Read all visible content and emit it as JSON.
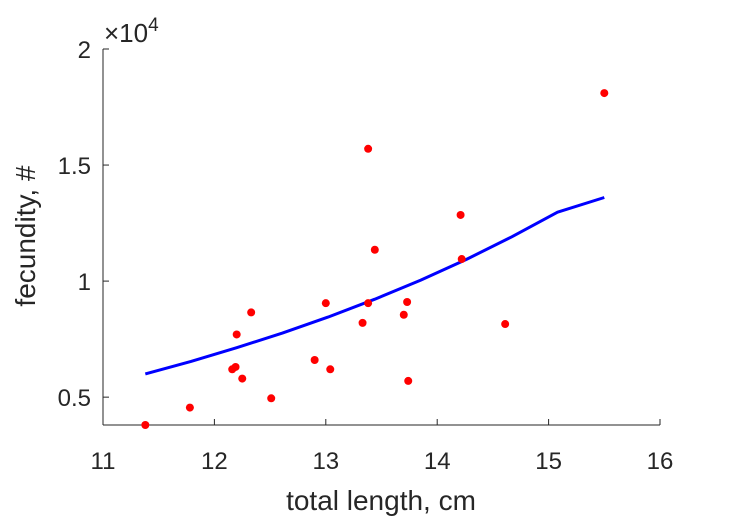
{
  "chart_data": {
    "type": "scatter",
    "xlabel": "total length, cm",
    "ylabel": "fecundity, #",
    "xlim": [
      11,
      16
    ],
    "ylim": [
      3800,
      20000
    ],
    "x_ticks": [
      11,
      12,
      13,
      14,
      15,
      16
    ],
    "y_ticks": [
      5000,
      10000,
      15000,
      20000
    ],
    "x_tick_labels": [
      "11",
      "12",
      "13",
      "14",
      "15",
      "16"
    ],
    "y_tick_labels": [
      "0.5",
      "1",
      "1.5",
      "2"
    ],
    "y_exponent_label": {
      "base": "×10",
      "exp": "4"
    },
    "grid": false,
    "series": [
      {
        "kind": "scatter",
        "color": "#ff0000",
        "points": [
          [
            11.38,
            3800
          ],
          [
            11.78,
            4550
          ],
          [
            12.16,
            6200
          ],
          [
            12.19,
            6300
          ],
          [
            12.2,
            7700
          ],
          [
            12.25,
            5800
          ],
          [
            12.33,
            8650
          ],
          [
            12.51,
            4950
          ],
          [
            12.9,
            6600
          ],
          [
            13.0,
            9050
          ],
          [
            13.04,
            6200
          ],
          [
            13.33,
            8200
          ],
          [
            13.38,
            9050
          ],
          [
            13.38,
            15700
          ],
          [
            13.44,
            11350
          ],
          [
            13.7,
            8550
          ],
          [
            13.73,
            9100
          ],
          [
            13.74,
            5700
          ],
          [
            14.21,
            12850
          ],
          [
            14.22,
            10950
          ],
          [
            14.61,
            8150
          ],
          [
            15.5,
            18100
          ]
        ]
      },
      {
        "kind": "line",
        "color": "#0000ff",
        "points": [
          [
            11.38,
            6000
          ],
          [
            11.79,
            6540
          ],
          [
            12.2,
            7130
          ],
          [
            12.61,
            7760
          ],
          [
            13.02,
            8450
          ],
          [
            13.44,
            9220
          ],
          [
            13.85,
            10040
          ],
          [
            14.26,
            10930
          ],
          [
            14.67,
            11910
          ],
          [
            15.08,
            12970
          ],
          [
            15.5,
            13600
          ]
        ]
      }
    ]
  }
}
